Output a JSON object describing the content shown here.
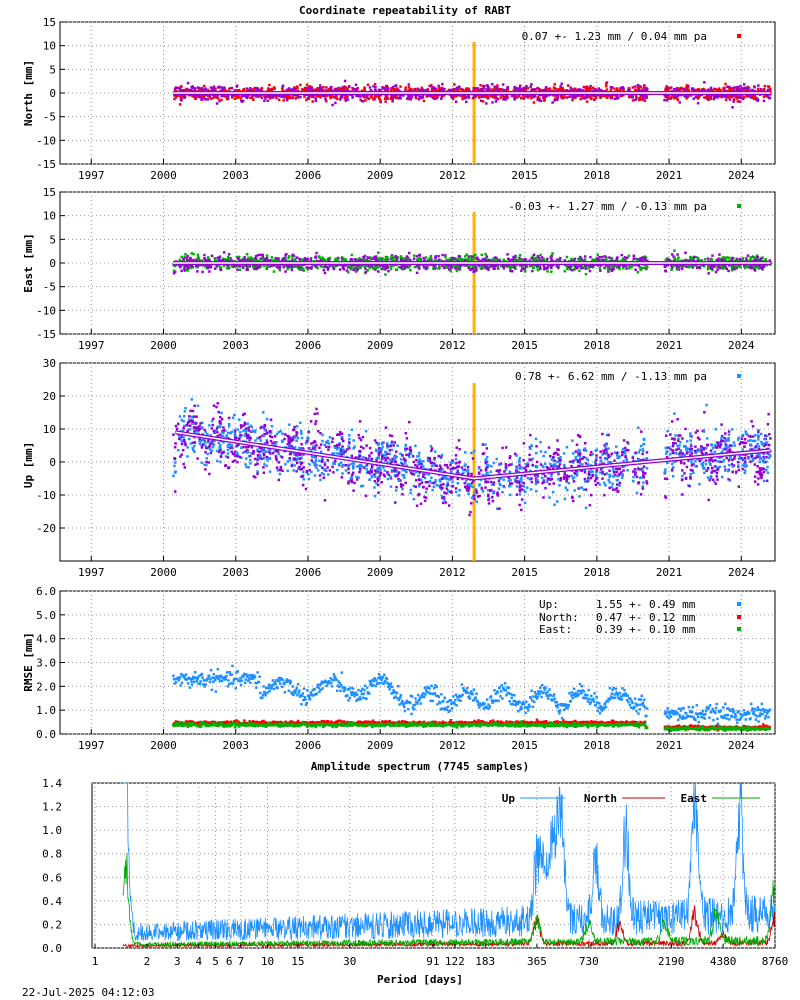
{
  "title": "Coordinate repeatability of RABT",
  "footer_timestamp": "22-Jul-2025 04:12:03",
  "colors": {
    "north": "#ff0000",
    "east": "#00b000",
    "up": "#1e90ff",
    "detrended": "#9400d3",
    "marker_line": "#ffb000",
    "trend_line": "#ffffff"
  },
  "chart_data": [
    {
      "type": "scatter",
      "id": "north",
      "ylabel": "North [mm]",
      "ylim": [
        -15,
        15
      ],
      "yticks": [
        "15",
        "10",
        "5",
        "0",
        "-5",
        "-10",
        "-15"
      ],
      "xlim": [
        1995.7,
        2025.4
      ],
      "xticks": [
        "1997",
        "2000",
        "2003",
        "2006",
        "2009",
        "2012",
        "2015",
        "2018",
        "2021",
        "2024"
      ],
      "grid": true,
      "legend": {
        "text": "0.07 +- 1.23 mm /  0.04 mm pa",
        "placement": "top-right",
        "color": "#ff0000"
      },
      "vertical_marker_year": 2012.9,
      "data_range": [
        2000.4,
        2025.2
      ],
      "gaps": [
        [
          2020.1,
          2020.8
        ]
      ],
      "scatter_sd": 1.23,
      "trend_rate": 0.04
    },
    {
      "type": "scatter",
      "id": "east",
      "ylabel": "East [mm]",
      "ylim": [
        -15,
        15
      ],
      "yticks": [
        "15",
        "10",
        "5",
        "0",
        "-5",
        "-10",
        "-15"
      ],
      "xlim": [
        1995.7,
        2025.4
      ],
      "xticks": [
        "1997",
        "2000",
        "2003",
        "2006",
        "2009",
        "2012",
        "2015",
        "2018",
        "2021",
        "2024"
      ],
      "grid": true,
      "legend": {
        "text": "-0.03 +- 1.27 mm / -0.13 mm pa",
        "placement": "top-right",
        "color": "#00b000"
      },
      "vertical_marker_year": 2012.9,
      "data_range": [
        2000.4,
        2025.2
      ],
      "gaps": [
        [
          2020.1,
          2020.8
        ]
      ],
      "scatter_sd": 1.27,
      "trend_rate": -0.13
    },
    {
      "type": "scatter",
      "id": "up",
      "ylabel": "Up [mm]",
      "ylim": [
        -30,
        30
      ],
      "yticks": [
        "30",
        "20",
        "10",
        "0",
        "-10",
        "-20"
      ],
      "xlim": [
        1995.7,
        2025.4
      ],
      "xticks": [
        "1997",
        "2000",
        "2003",
        "2006",
        "2009",
        "2012",
        "2015",
        "2018",
        "2021",
        "2024"
      ],
      "grid": true,
      "legend": {
        "text": "0.78 +- 6.62 mm / -1.13 mm pa",
        "placement": "top-right",
        "color": "#1e90ff"
      },
      "vertical_marker_year": 2012.9,
      "data_range": [
        2000.4,
        2025.2
      ],
      "gaps": [
        [
          2020.1,
          2020.8
        ]
      ],
      "trend_segments": [
        [
          2000.5,
          9.0
        ],
        [
          2012.9,
          -5.0
        ],
        [
          2020.0,
          0.0
        ],
        [
          2025.2,
          3.5
        ]
      ],
      "scatter_sd": 6.62,
      "trend_rate": -1.13
    },
    {
      "type": "scatter",
      "id": "rmse",
      "ylabel": "RMSE [mm]",
      "ylim": [
        0,
        6
      ],
      "yticks": [
        "6.0",
        "5.0",
        "4.0",
        "3.0",
        "2.0",
        "1.0",
        "0.0"
      ],
      "xlim": [
        1995.7,
        2025.4
      ],
      "xticks": [
        "1997",
        "2000",
        "2003",
        "2006",
        "2009",
        "2012",
        "2015",
        "2018",
        "2021",
        "2024"
      ],
      "grid": true,
      "legend_placement": "top-right",
      "series": [
        {
          "name": "Up:",
          "stat": "1.55 +- 0.49 mm",
          "mean": 1.55,
          "sd": 0.49,
          "color": "#1e90ff"
        },
        {
          "name": "North:",
          "stat": "0.47 +- 0.12 mm",
          "mean": 0.47,
          "sd": 0.12,
          "color": "#ff0000"
        },
        {
          "name": "East:",
          "stat": "0.39 +- 0.10 mm",
          "mean": 0.39,
          "sd": 0.1,
          "color": "#00b000"
        }
      ],
      "data_range": [
        2000.4,
        2025.2
      ],
      "gaps": [
        [
          2020.1,
          2020.8
        ]
      ]
    },
    {
      "type": "line",
      "id": "spectrum",
      "title": "Amplitude spectrum (7745 samples)",
      "xlabel": "Period [days]",
      "xscale": "log",
      "xlim": [
        1,
        8760
      ],
      "ylim": [
        0,
        1.4
      ],
      "yticks": [
        "1.4",
        "1.2",
        "1.0",
        "0.8",
        "0.6",
        "0.4",
        "0.2",
        "0.0"
      ],
      "xticks": [
        "1",
        "2",
        "3",
        "4",
        "5",
        "6",
        "7",
        "10",
        "15",
        "30",
        "91",
        "122",
        "183",
        "365",
        "730",
        "2190",
        "4380",
        "8760"
      ],
      "minor_xticks": [
        "60"
      ],
      "grid": true,
      "legend_placement": "top-right",
      "series": [
        {
          "name": "Up",
          "color": "#1e90ff",
          "baseline": 0.13,
          "peaks": [
            [
              1.5,
              1.4
            ],
            [
              365,
              0.7
            ],
            [
              400,
              0.55
            ],
            [
              450,
              0.8
            ],
            [
              500,
              1.3
            ],
            [
              800,
              0.7
            ],
            [
              1200,
              0.9
            ],
            [
              3000,
              1.4
            ],
            [
              5500,
              1.2
            ]
          ]
        },
        {
          "name": "North",
          "color": "#cc0000",
          "baseline": 0.02,
          "peaks": [
            [
              365,
              0.27
            ],
            [
              1100,
              0.2
            ],
            [
              3000,
              0.35
            ],
            [
              4380,
              0.1
            ],
            [
              8760,
              0.29
            ]
          ]
        },
        {
          "name": "East",
          "color": "#00aa00",
          "baseline": 0.03,
          "peaks": [
            [
              1.5,
              0.9
            ],
            [
              365,
              0.25
            ],
            [
              730,
              0.2
            ],
            [
              2000,
              0.2
            ],
            [
              4000,
              0.3
            ],
            [
              8760,
              0.71
            ]
          ]
        }
      ]
    }
  ]
}
